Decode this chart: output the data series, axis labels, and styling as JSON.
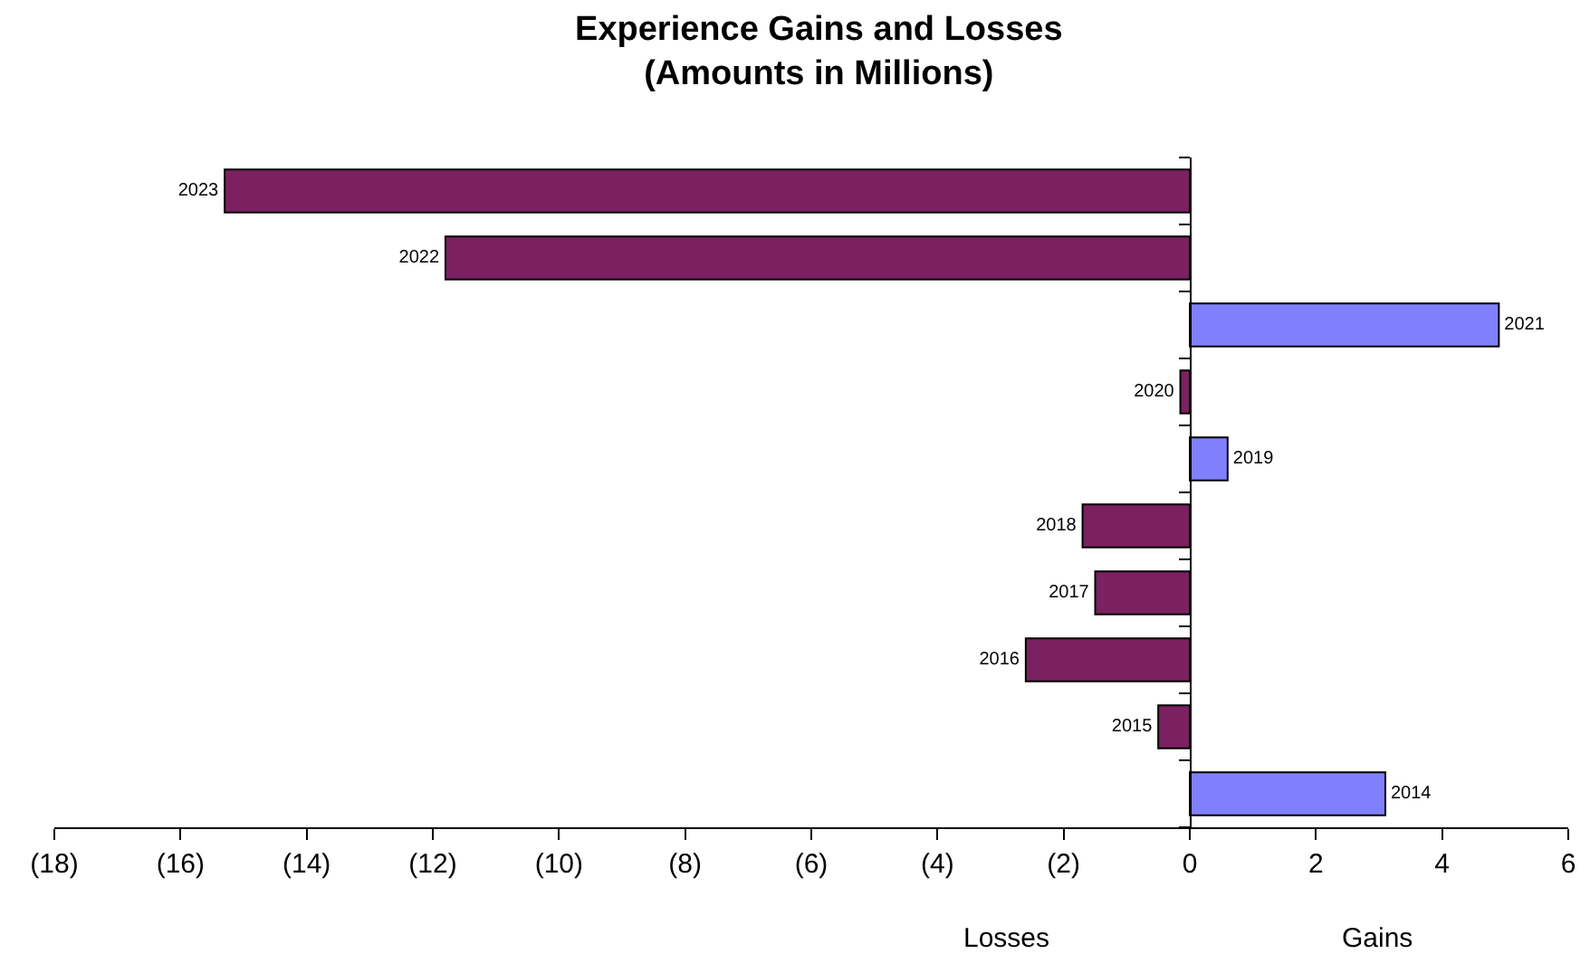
{
  "chart_data": {
    "type": "bar",
    "orientation": "horizontal",
    "title": "Experience Gains and Losses\n(Amounts in Millions)",
    "categories": [
      "2023",
      "2022",
      "2021",
      "2020",
      "2019",
      "2018",
      "2017",
      "2016",
      "2015",
      "2014"
    ],
    "values": [
      -15.3,
      -11.8,
      4.9,
      -0.15,
      0.6,
      -1.7,
      -1.5,
      -2.6,
      -0.5,
      3.1
    ],
    "colors": [
      "#7b2060",
      "#7b2060",
      "#8080ff",
      "#7b2060",
      "#8080ff",
      "#7b2060",
      "#7b2060",
      "#7b2060",
      "#7b2060",
      "#8080ff"
    ],
    "xlim": [
      -18,
      6
    ],
    "xticks": [
      {
        "value": -18,
        "label": "(18)"
      },
      {
        "value": -16,
        "label": "(16)"
      },
      {
        "value": -14,
        "label": "(14)"
      },
      {
        "value": -12,
        "label": "(12)"
      },
      {
        "value": -10,
        "label": "(10)"
      },
      {
        "value": -8,
        "label": "(8)"
      },
      {
        "value": -6,
        "label": "(6)"
      },
      {
        "value": -4,
        "label": "(4)"
      },
      {
        "value": -2,
        "label": "(2)"
      },
      0,
      2,
      4,
      6
    ],
    "annotations": [
      "Losses",
      "Gains"
    ]
  }
}
